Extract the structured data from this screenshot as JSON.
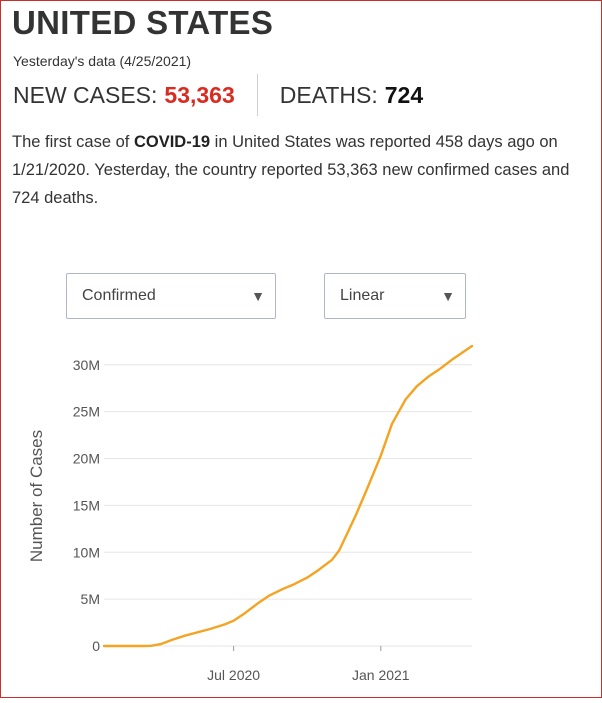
{
  "header": {
    "title": "UNITED STATES",
    "subtitle": "Yesterday's data (4/25/2021)"
  },
  "stats": {
    "new_cases_label": "NEW CASES:",
    "new_cases_value": "53,363",
    "deaths_label": "DEATHS:",
    "deaths_value": "724"
  },
  "summary": {
    "before_bold": "The first case of ",
    "bold": "COVID-19",
    "after_bold": " in United States was reported 458 days ago on 1/21/2020. Yesterday, the country reported 53,363 new confirmed cases and 724 deaths."
  },
  "controls": {
    "metric_select": "Confirmed",
    "scale_select": "Linear"
  },
  "colors": {
    "accent_red": "#d92b1f",
    "line": "#f4a323",
    "grid": "#e6e6e6"
  },
  "chart_data": {
    "type": "line",
    "ylabel": "Number of Cases",
    "xlabel": "",
    "yticks": [
      0,
      5000000,
      10000000,
      15000000,
      20000000,
      25000000,
      30000000
    ],
    "ytick_labels": [
      "0",
      "5M",
      "10M",
      "15M",
      "20M",
      "25M",
      "30M"
    ],
    "xticks": [
      {
        "date": "2020-07-01",
        "label": "Jul 2020"
      },
      {
        "date": "2021-01-01",
        "label": "Jan 2021"
      }
    ],
    "xlim": [
      "2020-01-21",
      "2021-04-25"
    ],
    "ylim": [
      0,
      32000000
    ],
    "grid": true,
    "series": [
      {
        "values": [
          {
            "x": "2020-01-21",
            "y": 0
          },
          {
            "x": "2020-03-10",
            "y": 1000
          },
          {
            "x": "2020-03-20",
            "y": 20000
          },
          {
            "x": "2020-04-01",
            "y": 200000
          },
          {
            "x": "2020-04-15",
            "y": 650000
          },
          {
            "x": "2020-05-01",
            "y": 1100000
          },
          {
            "x": "2020-06-01",
            "y": 1800000
          },
          {
            "x": "2020-06-20",
            "y": 2300000
          },
          {
            "x": "2020-07-01",
            "y": 2700000
          },
          {
            "x": "2020-07-15",
            "y": 3500000
          },
          {
            "x": "2020-08-01",
            "y": 4600000
          },
          {
            "x": "2020-08-15",
            "y": 5400000
          },
          {
            "x": "2020-09-01",
            "y": 6100000
          },
          {
            "x": "2020-09-15",
            "y": 6600000
          },
          {
            "x": "2020-10-01",
            "y": 7300000
          },
          {
            "x": "2020-10-15",
            "y": 8100000
          },
          {
            "x": "2020-11-01",
            "y": 9200000
          },
          {
            "x": "2020-11-10",
            "y": 10200000
          },
          {
            "x": "2020-11-20",
            "y": 12000000
          },
          {
            "x": "2020-12-01",
            "y": 14000000
          },
          {
            "x": "2020-12-15",
            "y": 16800000
          },
          {
            "x": "2021-01-01",
            "y": 20300000
          },
          {
            "x": "2021-01-15",
            "y": 23700000
          },
          {
            "x": "2021-02-01",
            "y": 26300000
          },
          {
            "x": "2021-02-15",
            "y": 27700000
          },
          {
            "x": "2021-03-01",
            "y": 28700000
          },
          {
            "x": "2021-03-15",
            "y": 29500000
          },
          {
            "x": "2021-04-01",
            "y": 30600000
          },
          {
            "x": "2021-04-25",
            "y": 32000000
          }
        ]
      }
    ]
  }
}
